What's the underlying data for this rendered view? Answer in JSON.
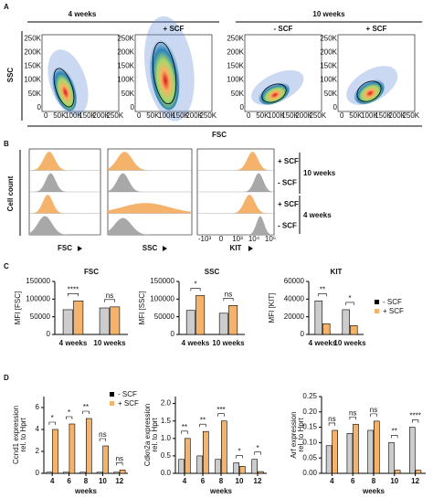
{
  "panel_a": {
    "label": "A",
    "groups": [
      "4 weeks",
      "10 weeks"
    ],
    "plot_labels": [
      null,
      "+ SCF",
      "- SCF",
      "+ SCF"
    ],
    "y_label": "SSC",
    "x_label": "FSC",
    "axis_ticks": [
      "0",
      "50K",
      "100K",
      "150K",
      "200K",
      "250K"
    ]
  },
  "panel_b": {
    "label": "B",
    "y_label": "Cell count",
    "panels": [
      "FSC",
      "SSC",
      "KIT"
    ],
    "kit_ticks": [
      "-10³",
      "0",
      "10³",
      "10⁴",
      "10⁵"
    ],
    "rows": [
      "+ SCF",
      "- SCF",
      "+ SCF",
      "- SCF"
    ],
    "groups": [
      "10 weeks",
      "4 weeks"
    ]
  },
  "panel_c": {
    "label": "C"
  },
  "panel_d": {
    "label": "D"
  },
  "chart_data": [
    {
      "type": "bar",
      "title": "FSC",
      "y_label": [
        "MFI [FSC]"
      ],
      "categories": [
        "4 weeks",
        "10 weeks"
      ],
      "series": [
        {
          "color": "#cccccc",
          "values": [
            70000,
            75000
          ]
        },
        {
          "color": "#f5b26b",
          "values": [
            95000,
            78000
          ]
        }
      ],
      "ylim": [
        0,
        150000
      ],
      "yticks": [
        0,
        50000,
        100000,
        150000
      ],
      "significance": [
        "****",
        "ns"
      ]
    },
    {
      "type": "bar",
      "title": "SSC",
      "y_label": [
        "MFI [SSC]"
      ],
      "categories": [
        "4 weeks",
        "10 weeks"
      ],
      "series": [
        {
          "color": "#cccccc",
          "values": [
            68000,
            60000
          ]
        },
        {
          "color": "#f5b26b",
          "values": [
            110000,
            82000
          ]
        }
      ],
      "ylim": [
        0,
        150000
      ],
      "yticks": [
        0,
        50000,
        100000,
        150000
      ],
      "significance": [
        "*",
        "ns"
      ]
    },
    {
      "type": "bar",
      "title": "KIT",
      "y_label": [
        "MFI [KIT]"
      ],
      "categories": [
        "4 weeks",
        "10 weeks"
      ],
      "series": [
        {
          "name": "- SCF",
          "color": "#cccccc",
          "values": [
            38000,
            28000
          ]
        },
        {
          "name": "+ SCF",
          "color": "#f5b26b",
          "values": [
            12000,
            10000
          ]
        }
      ],
      "ylim": [
        0,
        60000
      ],
      "yticks": [
        0,
        20000,
        40000,
        60000
      ],
      "significance": [
        "**",
        "*"
      ],
      "legend": "right"
    },
    {
      "type": "bar",
      "y_label": [
        "Ccnd1 expression",
        "rel. to Hprt"
      ],
      "x_label": "weeks",
      "x": [
        4,
        6,
        8,
        10,
        12
      ],
      "series": [
        {
          "name": "- SCF",
          "color": "#cccccc",
          "values": [
            0.1,
            0.1,
            0.1,
            0.1,
            0.1
          ]
        },
        {
          "name": "+ SCF",
          "color": "#f5b26b",
          "values": [
            4,
            4.5,
            5,
            2.5,
            0.3
          ]
        }
      ],
      "xlim": [
        3,
        13
      ],
      "xticks": [
        4,
        6,
        8,
        10,
        12
      ],
      "ylim": [
        0,
        7
      ],
      "yticks": [
        0,
        2,
        4,
        6
      ],
      "significance": [
        "*",
        "*",
        "**",
        "ns",
        "ns"
      ],
      "legend": "upper right"
    },
    {
      "type": "bar",
      "y_label": [
        "Cdkn2a expression",
        "rel. to Hprt"
      ],
      "x_label": "weeks",
      "x": [
        4,
        6,
        8,
        10,
        12
      ],
      "series": [
        {
          "color": "#cccccc",
          "values": [
            0.4,
            0.5,
            0.4,
            0.3,
            0.4
          ]
        },
        {
          "color": "#f5b26b",
          "values": [
            1.0,
            1.2,
            1.5,
            0.2,
            0.05
          ]
        }
      ],
      "xlim": [
        3,
        13
      ],
      "xticks": [
        4,
        6,
        8,
        10,
        12
      ],
      "ylim": [
        0,
        2.2
      ],
      "yticks": [
        {
          "value": 0,
          "label": "0.0"
        },
        0.5,
        {
          "value": 1,
          "label": "1.0"
        },
        1.5,
        {
          "value": 2,
          "label": "2.0"
        }
      ],
      "significance": [
        "**",
        "**",
        "***",
        "*",
        "*"
      ]
    },
    {
      "type": "bar",
      "y_label": [
        "Arf expression",
        "rel. to Hprt"
      ],
      "x_label": "weeks",
      "x": [
        4,
        6,
        8,
        10,
        12
      ],
      "series": [
        {
          "color": "#cccccc",
          "values": [
            0.09,
            0.13,
            0.14,
            0.1,
            0.15
          ]
        },
        {
          "color": "#f5b26b",
          "values": [
            0.14,
            0.16,
            0.17,
            0.01,
            0.01
          ]
        }
      ],
      "xlim": [
        3,
        13
      ],
      "xticks": [
        4,
        6,
        8,
        10,
        12
      ],
      "ylim": [
        0,
        0.25
      ],
      "yticks": [
        {
          "value": 0,
          "label": "0.00"
        },
        0.05,
        {
          "value": 0.1,
          "label": "0.10"
        },
        0.15,
        {
          "value": 0.2,
          "label": "0.20"
        },
        0.25
      ],
      "significance": [
        "ns",
        "ns",
        "ns",
        "**",
        "****"
      ]
    }
  ]
}
